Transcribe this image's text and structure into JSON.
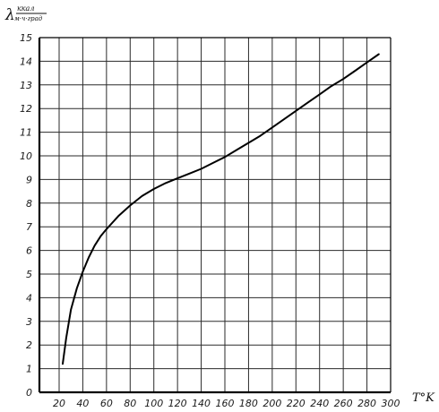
{
  "chart_data": {
    "type": "line",
    "xlabel": "T°K",
    "ylabel_symbol": "λ",
    "ylabel_unit_num": "ккал",
    "ylabel_unit_den": "м·ч·град",
    "xlim": [
      20,
      300
    ],
    "ylim": [
      0,
      15
    ],
    "x_tick_labels": [
      "20",
      "40",
      "60",
      "80",
      "100",
      "120",
      "140",
      "160",
      "180",
      "200",
      "220",
      "240",
      "260",
      "280",
      "300"
    ],
    "y_tick_labels": [
      "0",
      "1",
      "2",
      "3",
      "4",
      "5",
      "6",
      "7",
      "8",
      "9",
      "10",
      "11",
      "12",
      "13",
      "14",
      "15"
    ],
    "grid": true,
    "series": [
      {
        "x": [
          23,
          26,
          30,
          35,
          40,
          45,
          50,
          55,
          60,
          70,
          80,
          90,
          100,
          110,
          120,
          130,
          140,
          150,
          160,
          170,
          180,
          190,
          200,
          210,
          220,
          230,
          240,
          250,
          260,
          270,
          280,
          290
        ],
        "y": [
          1.2,
          2.3,
          3.5,
          4.4,
          5.1,
          5.7,
          6.2,
          6.6,
          6.9,
          7.45,
          7.9,
          8.3,
          8.6,
          8.85,
          9.05,
          9.25,
          9.45,
          9.7,
          9.95,
          10.25,
          10.55,
          10.85,
          11.2,
          11.55,
          11.9,
          12.25,
          12.6,
          12.95,
          13.25,
          13.6,
          13.95,
          14.3
        ]
      }
    ]
  }
}
